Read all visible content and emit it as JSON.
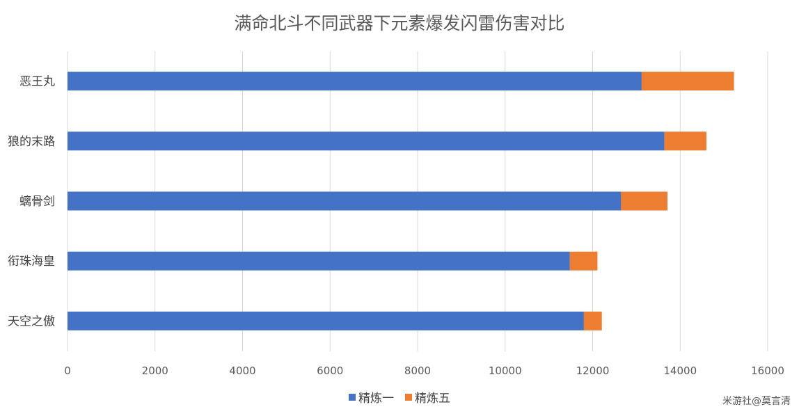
{
  "chart_data": {
    "type": "bar",
    "orientation": "horizontal",
    "stacked": true,
    "title": "满命北斗不同武器下元素爆发闪雷伤害对比",
    "categories": [
      "恶王丸",
      "狼的末路",
      "螭骨剑",
      "衔珠海皇",
      "天空之傲"
    ],
    "series": [
      {
        "name": "精炼一",
        "color": "#4472C4",
        "values": [
          13120,
          13640,
          12650,
          11480,
          11800
        ]
      },
      {
        "name": "精炼五",
        "color": "#ED7D31",
        "values": [
          2110,
          960,
          1060,
          630,
          410
        ]
      }
    ],
    "xlim": [
      0,
      16000
    ],
    "xticks": [
      "0",
      "2000",
      "4000",
      "6000",
      "8000",
      "10000",
      "12000",
      "14000",
      "16000"
    ],
    "grid": true,
    "legend_position": "bottom"
  },
  "watermark": "米游社@莫言清"
}
